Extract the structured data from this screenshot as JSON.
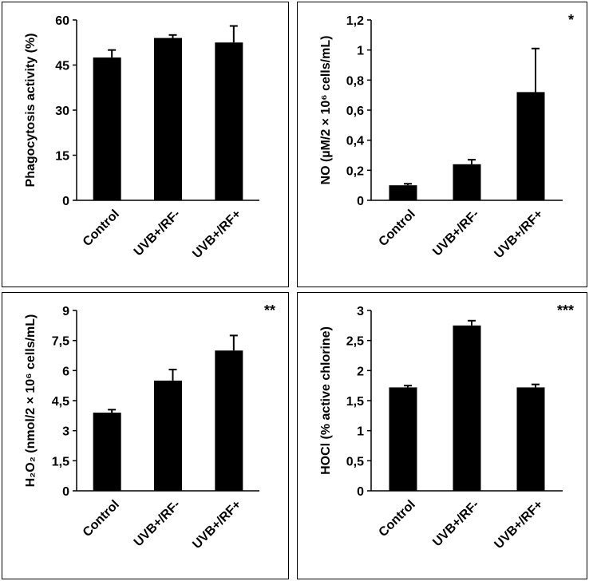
{
  "chart_data": [
    {
      "type": "bar",
      "categories": [
        "Control",
        "UVB+/RF-",
        "UVB+/RF+"
      ],
      "values": [
        47.5,
        54.0,
        52.5
      ],
      "errors": [
        2.5,
        1.0,
        5.5
      ],
      "ylabel": "Phagocytosis activity (%)",
      "ylim": [
        0,
        60
      ],
      "yticks": [
        "0",
        "15",
        "30",
        "45",
        "60"
      ],
      "ytick_values": [
        0,
        15,
        30,
        45,
        60
      ],
      "annotation": ""
    },
    {
      "type": "bar",
      "categories": [
        "Control",
        "UVB+/RF-",
        "UVB+/RF+"
      ],
      "values": [
        0.1,
        0.24,
        0.72
      ],
      "errors": [
        0.01,
        0.03,
        0.29
      ],
      "ylabel": "NO (µM/2 × 10⁶ cells/mL)",
      "ylim": [
        0,
        1.2
      ],
      "yticks": [
        "0",
        "0,2",
        "0,4",
        "0,6",
        "0,8",
        "1",
        "1,2"
      ],
      "ytick_values": [
        0,
        0.2,
        0.4,
        0.6,
        0.8,
        1.0,
        1.2
      ],
      "annotation": "*"
    },
    {
      "type": "bar",
      "categories": [
        "Control",
        "UVB+/RF-",
        "UVB+/RF+"
      ],
      "values": [
        3.9,
        5.5,
        7.0
      ],
      "errors": [
        0.15,
        0.55,
        0.75
      ],
      "ylabel": "H₂O₂ (nmol/2 × 10⁶ cells/mL)",
      "ylim": [
        0,
        9
      ],
      "yticks": [
        "0",
        "1,5",
        "3",
        "4,5",
        "6",
        "7,5",
        "9"
      ],
      "ytick_values": [
        0,
        1.5,
        3,
        4.5,
        6,
        7.5,
        9
      ],
      "annotation": "**"
    },
    {
      "type": "bar",
      "categories": [
        "Control",
        "UVB+/RF-",
        "UVB+/RF+"
      ],
      "values": [
        1.72,
        2.75,
        1.72
      ],
      "errors": [
        0.03,
        0.08,
        0.05
      ],
      "ylabel": "HOCl (% active chlorine)",
      "ylim": [
        0,
        3
      ],
      "yticks": [
        "0",
        "0,5",
        "1",
        "1,5",
        "2",
        "2,5",
        "3"
      ],
      "ytick_values": [
        0,
        0.5,
        1,
        1.5,
        2,
        2.5,
        3
      ],
      "annotation": "***"
    }
  ]
}
